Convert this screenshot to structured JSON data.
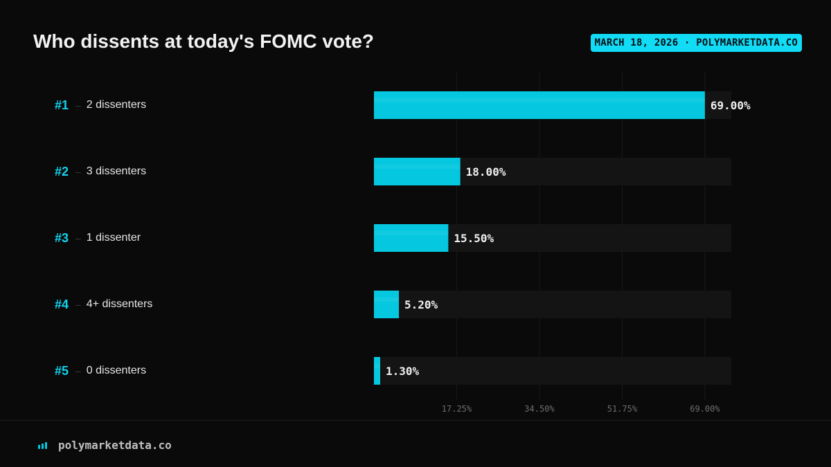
{
  "header": {
    "title": "Who dissents at today's FOMC vote?",
    "badge": "MARCH 18, 2026 · POLYMARKETDATA.CO"
  },
  "footer": {
    "logo_icon": "bar-chart-icon",
    "site": "polymarketdata.co"
  },
  "colors": {
    "accent": "#05c8e0",
    "background": "#0a0a0a",
    "track": "#141414"
  },
  "chart_data": {
    "type": "bar",
    "orientation": "horizontal",
    "title": "Who dissents at today's FOMC vote?",
    "ranks": [
      "#1",
      "#2",
      "#3",
      "#4",
      "#5"
    ],
    "categories": [
      "2 dissenters",
      "3 dissenters",
      "1 dissenter",
      "4+ dissenters",
      "0 dissenters"
    ],
    "values": [
      69.0,
      18.0,
      15.5,
      5.2,
      1.3
    ],
    "value_labels": [
      "69.00%",
      "18.00%",
      "15.50%",
      "5.20%",
      "1.30%"
    ],
    "xlim": [
      0,
      74.5
    ],
    "x_ticks": [
      17.25,
      34.5,
      51.75,
      69.0
    ],
    "x_tick_labels": [
      "17.25%",
      "34.50%",
      "51.75%",
      "69.00%"
    ],
    "grid": true,
    "legend": "none"
  }
}
